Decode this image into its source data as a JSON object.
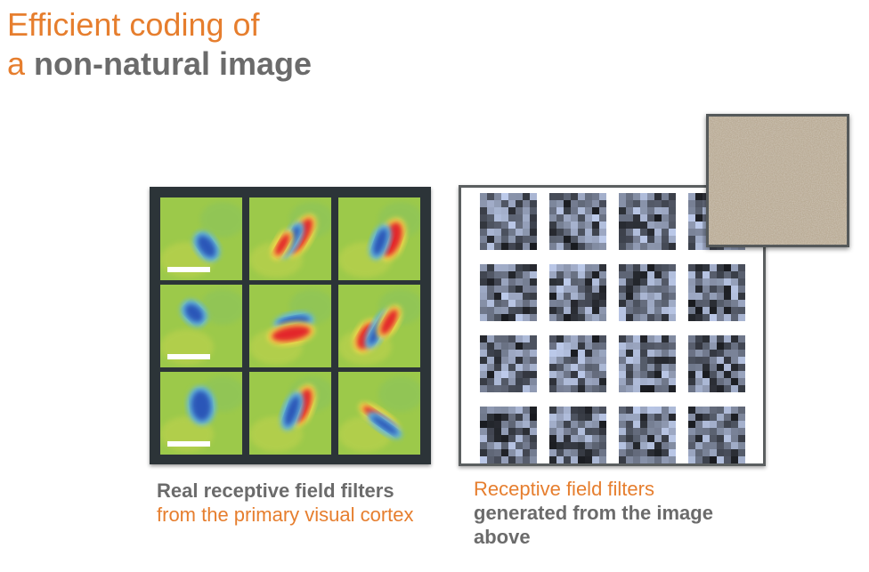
{
  "title": {
    "line1": "Efficient coding of",
    "line2_prefix": "a ",
    "line2_bold": "non-natural image"
  },
  "left_caption": {
    "bold": "Real receptive field filters",
    "orange": " from the primary visual cortex"
  },
  "right_caption": {
    "orange": "Receptive field filters",
    "bold": "generated from the image above"
  },
  "colors": {
    "title_orange": "#e67e2e",
    "title_gray": "#6b6b6b",
    "rf_background": "#9cc94a",
    "rf_positive": "#e3262b",
    "rf_negative": "#2c56b8",
    "left_frame": "#2c3438",
    "right_frame": "#5b5f60",
    "texture": "#b9aa93"
  },
  "grids": {
    "real_filters": {
      "rows": 3,
      "cols": 3,
      "scalebar_column": 0
    },
    "generated_filters": {
      "rows": 4,
      "cols": 4
    }
  }
}
